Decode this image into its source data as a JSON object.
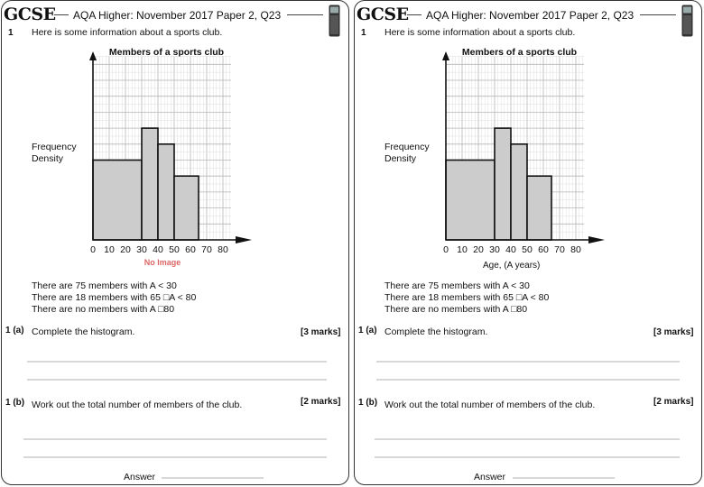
{
  "panels": [
    {
      "logo": "GCSE",
      "header_title": "AQA Higher: November 2017 Paper 2, Q23",
      "q_number": "1",
      "intro": "Here is some information about a sports club.",
      "placeholder_image_text": "No Image",
      "info_lines": [
        "There are 75 members with A < 30",
        "There are 18 members with 65 □A < 80",
        "There are no members with A □80"
      ],
      "part_a": {
        "label": "1 (a)",
        "text": "Complete the histogram.",
        "marks": "[3 marks]"
      },
      "part_b": {
        "label": "1 (b)",
        "text": "Work out the total number of members of the club.",
        "marks": "[2 marks]"
      },
      "answer_label": "Answer"
    },
    {
      "logo": "GCSE",
      "header_title": "AQA Higher: November 2017 Paper 2, Q23",
      "q_number": "1",
      "intro": "Here is some information about a sports club.",
      "info_lines": [
        "There are 75 members with A < 30",
        "There are 18 members with 65 □A < 80",
        "There are no members with A □80"
      ],
      "part_a": {
        "label": "1 (a)",
        "text": "Complete the histogram.",
        "marks": "[3 marks]"
      },
      "part_b": {
        "label": "1 (b)",
        "text": "Work out the total number of members of the club.",
        "marks": "[2 marks]"
      },
      "answer_label": "Answer"
    }
  ],
  "chart_data": [
    {
      "type": "bar",
      "title": "Members of a sports club",
      "ylabel": "Frequency Density",
      "xlabel": "",
      "x_ticks": [
        0,
        10,
        20,
        30,
        40,
        50,
        60,
        70,
        80
      ],
      "xlim": [
        0,
        85
      ],
      "ylim": [
        0,
        11.5
      ],
      "grid": true,
      "bins": [
        {
          "from": 0,
          "to": 30,
          "density": 5
        },
        {
          "from": 30,
          "to": 40,
          "density": 7
        },
        {
          "from": 40,
          "to": 50,
          "density": 6
        },
        {
          "from": 50,
          "to": 65,
          "density": 4
        }
      ]
    },
    {
      "type": "bar",
      "title": "Members of a sports club",
      "ylabel": "Frequency Density",
      "xlabel": "Age, (A years)",
      "x_ticks": [
        0,
        10,
        20,
        30,
        40,
        50,
        60,
        70,
        80
      ],
      "xlim": [
        0,
        85
      ],
      "ylim": [
        0,
        11.5
      ],
      "grid": true,
      "bins": [
        {
          "from": 0,
          "to": 30,
          "density": 5
        },
        {
          "from": 30,
          "to": 40,
          "density": 7
        },
        {
          "from": 40,
          "to": 50,
          "density": 6
        },
        {
          "from": 50,
          "to": 65,
          "density": 4
        }
      ]
    }
  ]
}
